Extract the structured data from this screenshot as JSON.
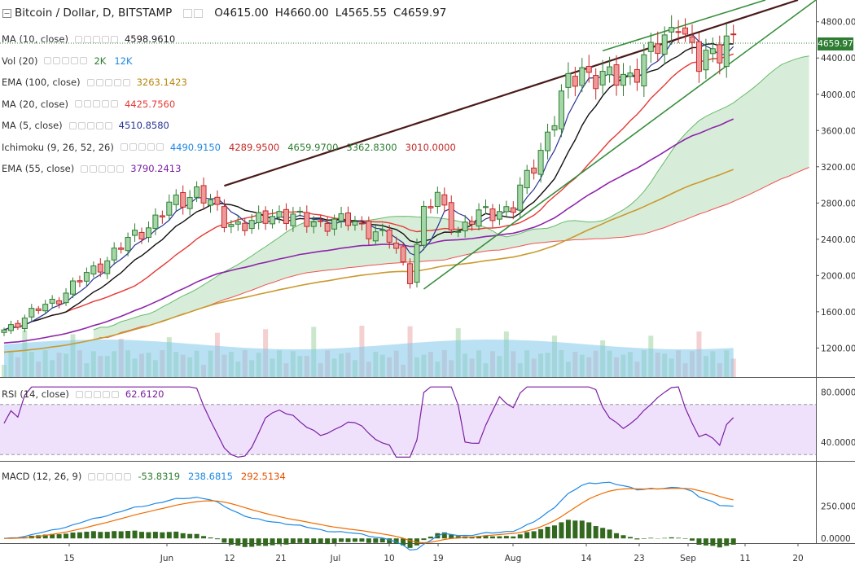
{
  "header": {
    "symbol": "Bitcoin / Dollar, D, BITSTAMP",
    "open": "O4615.00",
    "high": "H4660.00",
    "low": "L4565.55",
    "close": "C4659.97"
  },
  "indicators": [
    {
      "label": "MA (10, close)",
      "values": [
        {
          "text": "4598.9610",
          "color": "#222222"
        }
      ]
    },
    {
      "label": "Vol (20)",
      "values": [
        {
          "text": "2K",
          "color": "#2e7d32"
        },
        {
          "text": "12K",
          "color": "#1e88e5"
        }
      ]
    },
    {
      "label": "EMA (100, close)",
      "values": [
        {
          "text": "3263.1423",
          "color": "#b8860b"
        }
      ]
    },
    {
      "label": "MA (20, close)",
      "values": [
        {
          "text": "4425.7560",
          "color": "#e53935"
        }
      ]
    },
    {
      "label": "MA (5, close)",
      "values": [
        {
          "text": "4510.8580",
          "color": "#283593"
        }
      ]
    },
    {
      "label": "Ichimoku (9, 26, 52, 26)",
      "values": [
        {
          "text": "4490.9150",
          "color": "#1e88e5"
        },
        {
          "text": "4289.9500",
          "color": "#c62828"
        },
        {
          "text": "4659.9700",
          "color": "#2e7d32"
        },
        {
          "text": "3362.8300",
          "color": "#2e7d32"
        },
        {
          "text": "3010.0000",
          "color": "#c62828"
        }
      ]
    },
    {
      "label": "EMA (55, close)",
      "values": [
        {
          "text": "3790.2413",
          "color": "#7b1fa2"
        }
      ]
    }
  ],
  "rsi_legend": {
    "label": "RSI (14, close)",
    "value": "62.6120"
  },
  "macd_legend": {
    "label": "MACD (12, 26, 9)",
    "values": [
      {
        "text": "-53.8319",
        "color": "#2e7d32"
      },
      {
        "text": "238.6815",
        "color": "#1e88e5"
      },
      {
        "text": "292.5134",
        "color": "#e65100"
      }
    ]
  },
  "price_label": "4659.97",
  "colors": {
    "up": "#2e7d32",
    "down": "#c62828",
    "trend_dark": "#4a1a1a",
    "trend_green": "#388e3c",
    "rsi": "#7b1fa2",
    "macd": "#1e88e5",
    "signal": "#ef6c00",
    "volume_ma": "#81c8ea"
  },
  "chart_data": {
    "type": "candlestick",
    "x_ticks": [
      "15",
      "Jun",
      "12",
      "21",
      "Jul",
      "10",
      "19",
      "Aug",
      "14",
      "23",
      "Sep",
      "11",
      "20"
    ],
    "price_axis": {
      "ticks": [
        "1200.00",
        "1600.00",
        "2000.00",
        "2400.00",
        "2800.00",
        "3200.00",
        "3600.00",
        "4000.00",
        "4400.00",
        "4800.00"
      ],
      "range": [
        880,
        5040
      ]
    },
    "rsi_axis": {
      "ticks": [
        "40.0000",
        "80.0000"
      ],
      "bands": [
        30,
        70
      ]
    },
    "macd_axis": {
      "ticks": [
        "0.0000",
        "250.0000"
      ]
    },
    "anchors": [
      {
        "i": 0,
        "close": 1400
      },
      {
        "i": 8,
        "close": 1760
      },
      {
        "i": 16,
        "close": 2250
      },
      {
        "i": 20,
        "close": 2500
      },
      {
        "i": 24,
        "close": 2750
      },
      {
        "i": 28,
        "close": 2950
      },
      {
        "i": 32,
        "close": 2600
      },
      {
        "i": 36,
        "close": 2560
      },
      {
        "i": 40,
        "close": 2700
      },
      {
        "i": 44,
        "close": 2580
      },
      {
        "i": 48,
        "close": 2600
      },
      {
        "i": 52,
        "close": 2560
      },
      {
        "i": 56,
        "close": 2390
      },
      {
        "i": 59,
        "close": 2000
      },
      {
        "i": 61,
        "close": 2700
      },
      {
        "i": 63,
        "close": 2850
      },
      {
        "i": 66,
        "close": 2500
      },
      {
        "i": 70,
        "close": 2700
      },
      {
        "i": 74,
        "close": 2750
      },
      {
        "i": 78,
        "close": 3400
      },
      {
        "i": 82,
        "close": 4100
      },
      {
        "i": 84,
        "close": 4300
      },
      {
        "i": 87,
        "close": 4150
      },
      {
        "i": 90,
        "close": 4200
      },
      {
        "i": 93,
        "close": 4350
      },
      {
        "i": 96,
        "close": 4600
      },
      {
        "i": 98,
        "close": 4900
      },
      {
        "i": 99,
        "close": 4600
      },
      {
        "i": 101,
        "close": 4300
      },
      {
        "i": 103,
        "close": 4500
      },
      {
        "i": 106,
        "close": 4660
      }
    ]
  }
}
